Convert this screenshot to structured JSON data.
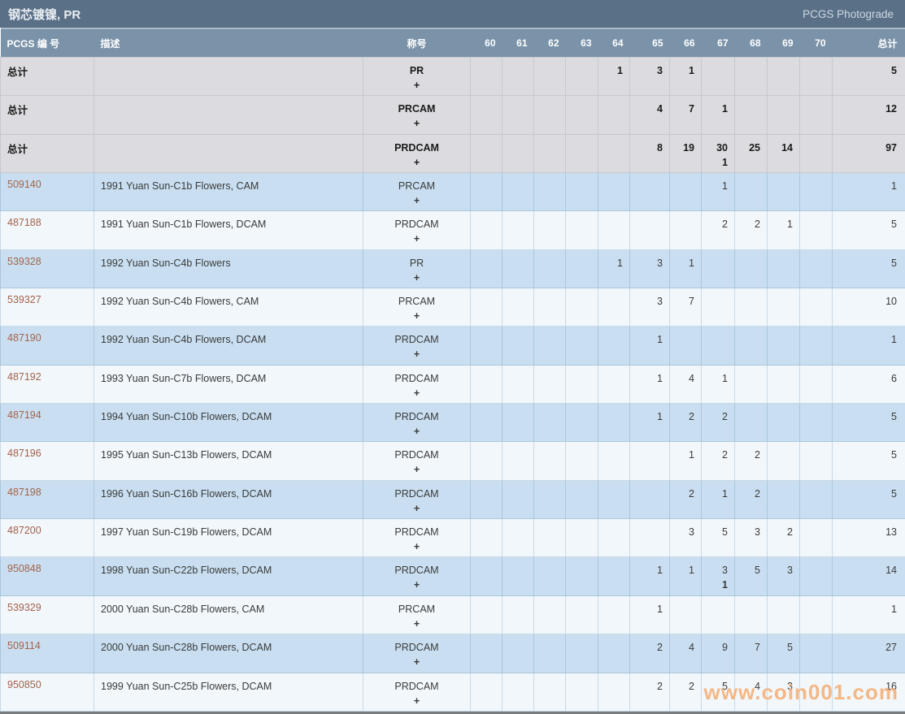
{
  "title_bar": {
    "title": "钢芯镀镍, PR",
    "photograde_link": "PCGS Photograde"
  },
  "table": {
    "headers": {
      "pcgs_number": "PCGS 编 号",
      "description": "描述",
      "designation": "称号",
      "total": "总计"
    },
    "grade_headers": [
      "60",
      "61",
      "62",
      "63",
      "64",
      "65",
      "66",
      "67",
      "68",
      "69",
      "70"
    ],
    "rows": [
      {
        "pcgs_no": "总计",
        "is_link": false,
        "description": "",
        "designation": "PR",
        "plus": "+",
        "style": "total",
        "grades": [
          "",
          "",
          "",
          "",
          "1",
          "3",
          "1",
          "",
          "",
          "",
          ""
        ],
        "total": "5"
      },
      {
        "pcgs_no": "总计",
        "is_link": false,
        "description": "",
        "designation": "PRCAM",
        "plus": "+",
        "style": "total",
        "grades": [
          "",
          "",
          "",
          "",
          "",
          "4",
          "7",
          "1",
          "",
          "",
          ""
        ],
        "total": "12"
      },
      {
        "pcgs_no": "总计",
        "is_link": false,
        "description": "",
        "designation": "PRDCAM",
        "plus": "+",
        "style": "total",
        "grades": [
          "",
          "",
          "",
          "",
          "",
          "8",
          "19",
          "30",
          "25",
          "14",
          ""
        ],
        "grades_plus": [
          "",
          "",
          "",
          "",
          "",
          "",
          "",
          "1",
          "",
          "",
          ""
        ],
        "total": "97"
      },
      {
        "pcgs_no": "509140",
        "is_link": true,
        "description": "1991 Yuan Sun-C1b Flowers, CAM",
        "designation": "PRCAM",
        "plus": "+",
        "style": "blue",
        "grades": [
          "",
          "",
          "",
          "",
          "",
          "",
          "",
          "1",
          "",
          "",
          ""
        ],
        "total": "1"
      },
      {
        "pcgs_no": "487188",
        "is_link": true,
        "description": "1991 Yuan Sun-C1b Flowers, DCAM",
        "designation": "PRDCAM",
        "plus": "+",
        "style": "white",
        "grades": [
          "",
          "",
          "",
          "",
          "",
          "",
          "",
          "2",
          "2",
          "1",
          ""
        ],
        "total": "5"
      },
      {
        "pcgs_no": "539328",
        "is_link": true,
        "description": "1992 Yuan Sun-C4b Flowers",
        "designation": "PR",
        "plus": "+",
        "style": "blue",
        "grades": [
          "",
          "",
          "",
          "",
          "1",
          "3",
          "1",
          "",
          "",
          "",
          ""
        ],
        "total": "5"
      },
      {
        "pcgs_no": "539327",
        "is_link": true,
        "description": "1992 Yuan Sun-C4b Flowers, CAM",
        "designation": "PRCAM",
        "plus": "+",
        "style": "white",
        "grades": [
          "",
          "",
          "",
          "",
          "",
          "3",
          "7",
          "",
          "",
          "",
          ""
        ],
        "total": "10"
      },
      {
        "pcgs_no": "487190",
        "is_link": true,
        "description": "1992 Yuan Sun-C4b Flowers, DCAM",
        "designation": "PRDCAM",
        "plus": "+",
        "style": "blue",
        "grades": [
          "",
          "",
          "",
          "",
          "",
          "1",
          "",
          "",
          "",
          "",
          ""
        ],
        "total": "1"
      },
      {
        "pcgs_no": "487192",
        "is_link": true,
        "description": "1993 Yuan Sun-C7b Flowers, DCAM",
        "designation": "PRDCAM",
        "plus": "+",
        "style": "white",
        "grades": [
          "",
          "",
          "",
          "",
          "",
          "1",
          "4",
          "1",
          "",
          "",
          ""
        ],
        "total": "6"
      },
      {
        "pcgs_no": "487194",
        "is_link": true,
        "description": "1994 Yuan Sun-C10b Flowers, DCAM",
        "designation": "PRDCAM",
        "plus": "+",
        "style": "blue",
        "grades": [
          "",
          "",
          "",
          "",
          "",
          "1",
          "2",
          "2",
          "",
          "",
          ""
        ],
        "total": "5"
      },
      {
        "pcgs_no": "487196",
        "is_link": true,
        "description": "1995 Yuan Sun-C13b Flowers, DCAM",
        "designation": "PRDCAM",
        "plus": "+",
        "style": "white",
        "grades": [
          "",
          "",
          "",
          "",
          "",
          "",
          "1",
          "2",
          "2",
          "",
          ""
        ],
        "total": "5"
      },
      {
        "pcgs_no": "487198",
        "is_link": true,
        "description": "1996 Yuan Sun-C16b Flowers, DCAM",
        "designation": "PRDCAM",
        "plus": "+",
        "style": "blue",
        "grades": [
          "",
          "",
          "",
          "",
          "",
          "",
          "2",
          "1",
          "2",
          "",
          ""
        ],
        "total": "5"
      },
      {
        "pcgs_no": "487200",
        "is_link": true,
        "description": "1997 Yuan Sun-C19b Flowers, DCAM",
        "designation": "PRDCAM",
        "plus": "+",
        "style": "white",
        "grades": [
          "",
          "",
          "",
          "",
          "",
          "",
          "3",
          "5",
          "3",
          "2",
          ""
        ],
        "total": "13"
      },
      {
        "pcgs_no": "950848",
        "is_link": true,
        "description": "1998 Yuan Sun-C22b Flowers, DCAM",
        "designation": "PRDCAM",
        "plus": "+",
        "style": "blue",
        "grades": [
          "",
          "",
          "",
          "",
          "",
          "1",
          "1",
          "3",
          "5",
          "3",
          ""
        ],
        "grades_plus": [
          "",
          "",
          "",
          "",
          "",
          "",
          "",
          "1",
          "",
          "",
          ""
        ],
        "total": "14"
      },
      {
        "pcgs_no": "539329",
        "is_link": true,
        "description": "2000 Yuan Sun-C28b Flowers, CAM",
        "designation": "PRCAM",
        "plus": "+",
        "style": "white",
        "grades": [
          "",
          "",
          "",
          "",
          "",
          "1",
          "",
          "",
          "",
          "",
          ""
        ],
        "total": "1"
      },
      {
        "pcgs_no": "509114",
        "is_link": true,
        "description": "2000 Yuan Sun-C28b Flowers, DCAM",
        "designation": "PRDCAM",
        "plus": "+",
        "style": "blue",
        "grades": [
          "",
          "",
          "",
          "",
          "",
          "2",
          "4",
          "9",
          "7",
          "5",
          ""
        ],
        "total": "27"
      },
      {
        "pcgs_no": "950850",
        "is_link": true,
        "description": "1999 Yuan Sun-C25b Flowers, DCAM",
        "designation": "PRDCAM",
        "plus": "+",
        "style": "white",
        "grades": [
          "",
          "",
          "",
          "",
          "",
          "2",
          "2",
          "5",
          "4",
          "3",
          ""
        ],
        "total": "16"
      }
    ]
  },
  "watermark": "www.coin001.com",
  "colors": {
    "title_bar": "#5a7086",
    "header_row": "#7a93a9",
    "total_row_bg": "#dcdce0",
    "row_blue": "#c9dff1",
    "row_white": "#f2f7fb",
    "link": "#a2624a",
    "watermark": "#f4ab70"
  }
}
